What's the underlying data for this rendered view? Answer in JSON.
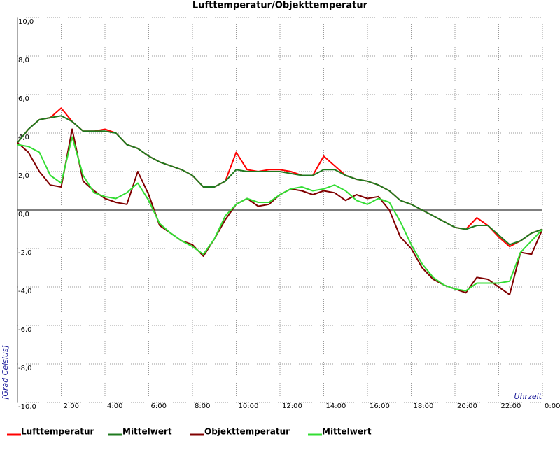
{
  "chart_data": {
    "type": "line",
    "title": "Lufttemperatur/Objekttemperatur",
    "y_label": "[Grad Celsius]",
    "x_label": "Uhrzeit",
    "x": [
      0,
      0.5,
      1,
      1.5,
      2,
      2.5,
      3,
      3.5,
      4,
      4.5,
      5,
      5.5,
      6,
      6.5,
      7,
      7.5,
      8,
      8.5,
      9,
      9.5,
      10,
      10.5,
      11,
      11.5,
      12,
      12.5,
      13,
      13.5,
      14,
      14.5,
      15,
      15.5,
      16,
      16.5,
      17,
      17.5,
      18,
      18.5,
      19,
      19.5,
      20,
      20.5,
      21,
      21.5,
      22,
      22.5,
      23,
      23.5,
      24
    ],
    "xlim": [
      0,
      24
    ],
    "xticks": [
      {
        "value": 2,
        "label": "2:00"
      },
      {
        "value": 4,
        "label": "4:00"
      },
      {
        "value": 6,
        "label": "6:00"
      },
      {
        "value": 8,
        "label": "8:00"
      },
      {
        "value": 10,
        "label": "10:00"
      },
      {
        "value": 12,
        "label": "12:00"
      },
      {
        "value": 14,
        "label": "14:00"
      },
      {
        "value": 16,
        "label": "16:00"
      },
      {
        "value": 18,
        "label": "18:00"
      },
      {
        "value": 20,
        "label": "20:00"
      },
      {
        "value": 22,
        "label": "22:00"
      },
      {
        "value": 24,
        "label": "0:00"
      }
    ],
    "ylim": [
      -10,
      10
    ],
    "yticks": [
      {
        "value": -10,
        "label": "-10,0"
      },
      {
        "value": -8,
        "label": "-8,0"
      },
      {
        "value": -6,
        "label": "-6,0"
      },
      {
        "value": -4,
        "label": "-4,0"
      },
      {
        "value": -2,
        "label": "-2,0"
      },
      {
        "value": 0,
        "label": "0,0"
      },
      {
        "value": 2,
        "label": "2,0"
      },
      {
        "value": 4,
        "label": "4,0"
      },
      {
        "value": 6,
        "label": "6,0"
      },
      {
        "value": 8,
        "label": "8,0"
      },
      {
        "value": 10,
        "label": "10,0"
      }
    ],
    "grid": true,
    "series": [
      {
        "name": "Lufttemperatur",
        "color": "#ff0000",
        "values": [
          3.5,
          4.2,
          4.7,
          4.8,
          5.3,
          4.6,
          4.1,
          4.1,
          4.2,
          4.0,
          3.4,
          3.2,
          2.8,
          2.5,
          2.3,
          2.1,
          1.8,
          1.2,
          1.2,
          1.5,
          3.0,
          2.1,
          2.0,
          2.1,
          2.1,
          2.0,
          1.8,
          1.8,
          2.8,
          2.3,
          1.8,
          1.6,
          1.5,
          1.3,
          1.0,
          0.5,
          0.3,
          0.0,
          -0.3,
          -0.6,
          -0.9,
          -1.0,
          -0.4,
          -0.8,
          -1.4,
          -1.9,
          -1.6,
          -1.2,
          -1.0
        ]
      },
      {
        "name": "Mittelwert",
        "color": "#1f7a1f",
        "values": [
          3.5,
          4.2,
          4.7,
          4.8,
          4.9,
          4.6,
          4.1,
          4.1,
          4.1,
          4.0,
          3.4,
          3.2,
          2.8,
          2.5,
          2.3,
          2.1,
          1.8,
          1.2,
          1.2,
          1.5,
          2.1,
          2.0,
          2.0,
          2.0,
          2.0,
          1.9,
          1.8,
          1.8,
          2.1,
          2.1,
          1.8,
          1.6,
          1.5,
          1.3,
          1.0,
          0.5,
          0.3,
          0.0,
          -0.3,
          -0.6,
          -0.9,
          -1.0,
          -0.8,
          -0.8,
          -1.3,
          -1.8,
          -1.6,
          -1.2,
          -1.0
        ]
      },
      {
        "name": "Objekttemperatur",
        "color": "#800000",
        "values": [
          3.5,
          3.0,
          2.0,
          1.3,
          1.2,
          4.2,
          1.5,
          1.0,
          0.6,
          0.4,
          0.3,
          2.0,
          0.8,
          -0.8,
          -1.2,
          -1.6,
          -1.8,
          -2.4,
          -1.5,
          -0.5,
          0.3,
          0.6,
          0.2,
          0.3,
          0.8,
          1.1,
          1.0,
          0.8,
          1.0,
          0.9,
          0.5,
          0.8,
          0.6,
          0.7,
          0.0,
          -1.4,
          -2.0,
          -3.0,
          -3.6,
          -3.9,
          -4.1,
          -4.3,
          -3.5,
          -3.6,
          -4.0,
          -4.4,
          -2.2,
          -2.3,
          -1.0
        ]
      },
      {
        "name": "Mittelwert",
        "color": "#33dd33",
        "values": [
          3.4,
          3.3,
          3.0,
          1.8,
          1.4,
          3.8,
          1.8,
          0.9,
          0.7,
          0.6,
          0.9,
          1.4,
          0.5,
          -0.7,
          -1.2,
          -1.6,
          -1.9,
          -2.3,
          -1.5,
          -0.3,
          0.3,
          0.6,
          0.4,
          0.4,
          0.8,
          1.1,
          1.2,
          1.0,
          1.1,
          1.3,
          1.0,
          0.5,
          0.3,
          0.6,
          0.4,
          -0.6,
          -1.8,
          -2.8,
          -3.5,
          -3.9,
          -4.1,
          -4.2,
          -3.8,
          -3.8,
          -3.8,
          -3.7,
          -2.2,
          -1.6,
          -1.0
        ]
      }
    ]
  }
}
